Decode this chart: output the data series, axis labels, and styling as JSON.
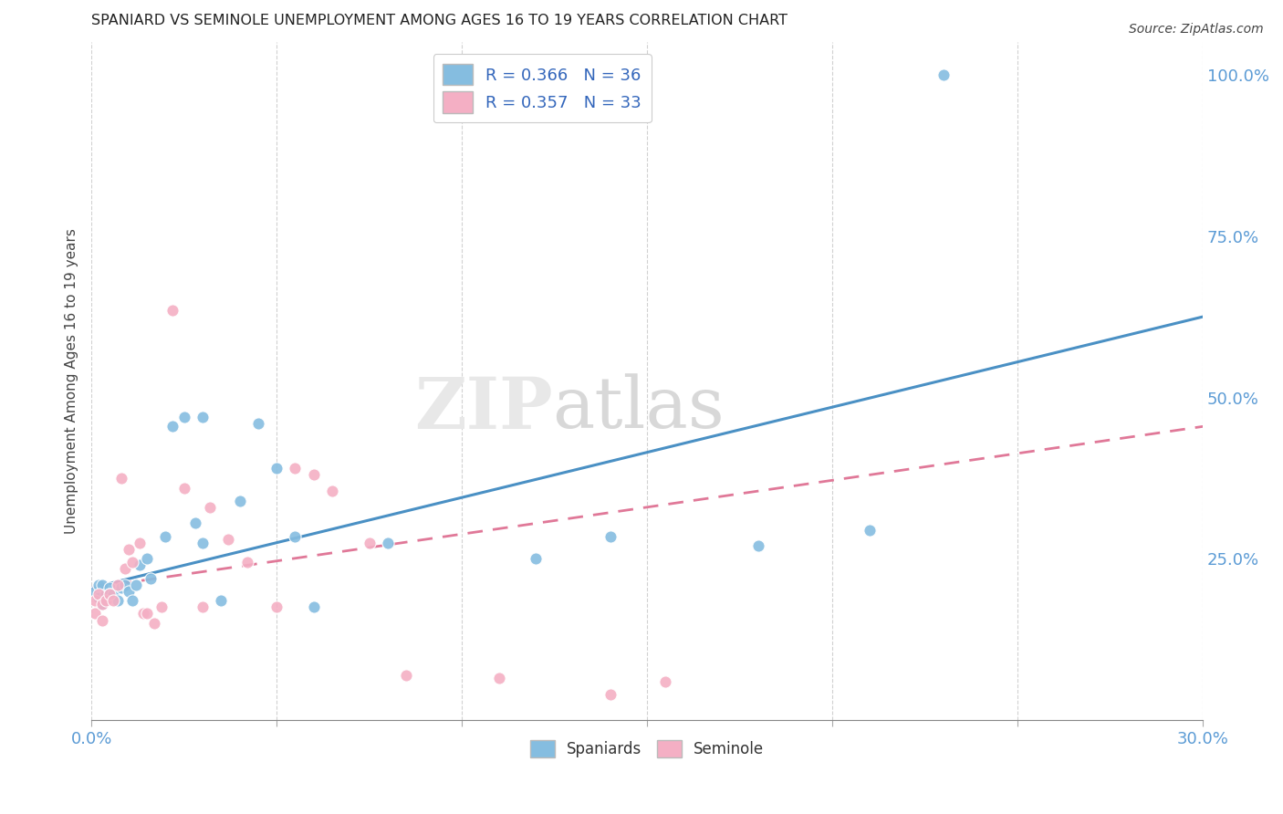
{
  "title": "SPANIARD VS SEMINOLE UNEMPLOYMENT AMONG AGES 16 TO 19 YEARS CORRELATION CHART",
  "source": "Source: ZipAtlas.com",
  "ylabel": "Unemployment Among Ages 16 to 19 years",
  "right_yticks": [
    "100.0%",
    "75.0%",
    "50.0%",
    "25.0%"
  ],
  "right_ytick_vals": [
    1.0,
    0.75,
    0.5,
    0.25
  ],
  "legend_blue_label": "R = 0.366   N = 36",
  "legend_pink_label": "R = 0.357   N = 33",
  "blue_color": "#85bde0",
  "pink_color": "#f4afc4",
  "blue_line_color": "#4a90c4",
  "pink_line_color": "#e07898",
  "xmin": 0.0,
  "xmax": 0.3,
  "ymin": 0.0,
  "ymax": 1.05,
  "background_color": "#ffffff",
  "grid_color": "#cccccc",
  "sp_x": [
    0.001,
    0.002,
    0.002,
    0.003,
    0.003,
    0.004,
    0.005,
    0.005,
    0.006,
    0.007,
    0.008,
    0.009,
    0.01,
    0.011,
    0.012,
    0.013,
    0.015,
    0.016,
    0.02,
    0.022,
    0.025,
    0.028,
    0.03,
    0.03,
    0.035,
    0.04,
    0.045,
    0.05,
    0.055,
    0.06,
    0.08,
    0.12,
    0.14,
    0.18,
    0.21,
    0.23
  ],
  "sp_y": [
    0.2,
    0.19,
    0.21,
    0.18,
    0.21,
    0.195,
    0.205,
    0.195,
    0.195,
    0.185,
    0.205,
    0.21,
    0.2,
    0.185,
    0.21,
    0.24,
    0.25,
    0.22,
    0.285,
    0.455,
    0.47,
    0.305,
    0.275,
    0.47,
    0.185,
    0.34,
    0.46,
    0.39,
    0.285,
    0.175,
    0.275,
    0.25,
    0.285,
    0.27,
    0.295,
    1.0
  ],
  "se_x": [
    0.001,
    0.001,
    0.002,
    0.003,
    0.003,
    0.004,
    0.005,
    0.006,
    0.007,
    0.008,
    0.009,
    0.01,
    0.011,
    0.013,
    0.014,
    0.015,
    0.017,
    0.019,
    0.022,
    0.025,
    0.03,
    0.032,
    0.037,
    0.042,
    0.05,
    0.055,
    0.06,
    0.065,
    0.075,
    0.085,
    0.11,
    0.14,
    0.155
  ],
  "se_y": [
    0.185,
    0.165,
    0.195,
    0.18,
    0.155,
    0.185,
    0.195,
    0.185,
    0.21,
    0.375,
    0.235,
    0.265,
    0.245,
    0.275,
    0.165,
    0.165,
    0.15,
    0.175,
    0.635,
    0.36,
    0.175,
    0.33,
    0.28,
    0.245,
    0.175,
    0.39,
    0.38,
    0.355,
    0.275,
    0.07,
    0.065,
    0.04,
    0.06
  ],
  "blue_line_y0": 0.205,
  "blue_line_y1": 0.625,
  "pink_line_y0": 0.205,
  "pink_line_y1": 0.455
}
